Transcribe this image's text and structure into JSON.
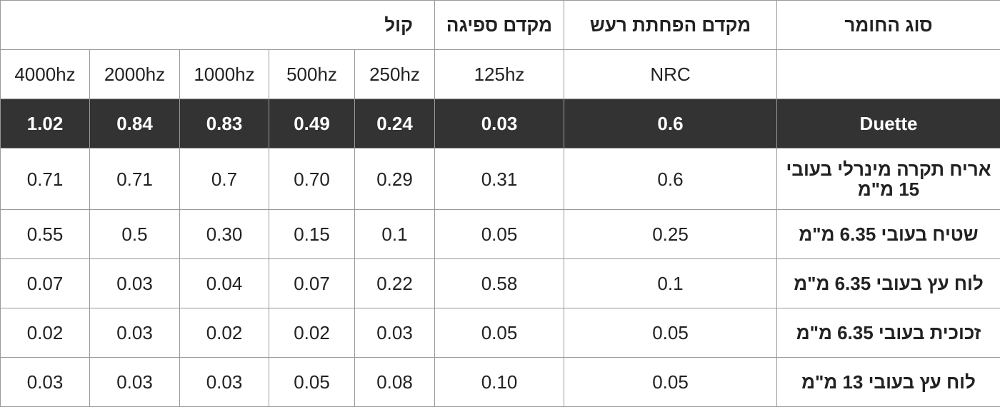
{
  "table": {
    "header": [
      "סוג החומר",
      "מקדם הפחתת רעש",
      "מקדם ספיגה",
      "קול"
    ],
    "subheader": [
      "",
      "NRC",
      "125hz",
      "250hz",
      "500hz",
      "1000hz",
      "2000hz",
      "4000hz"
    ],
    "rows": [
      [
        "Duette",
        "0.6",
        "0.03",
        "0.24",
        "0.49",
        "0.83",
        "0.84",
        "1.02"
      ],
      [
        "אריח תקרה מינרלי בעובי 15 מ\"מ",
        "0.6",
        "0.31",
        "0.29",
        "0.70",
        "0.7",
        "0.71",
        "0.71"
      ],
      [
        "שטיח בעובי 6.35 מ\"מ",
        "0.25",
        "0.05",
        "0.1",
        "0.15",
        "0.30",
        "0.5",
        "0.55"
      ],
      [
        "לוח עץ בעובי 6.35 מ\"מ",
        "0.1",
        "0.58",
        "0.22",
        "0.07",
        "0.04",
        "0.03",
        "0.07"
      ],
      [
        "זכוכית בעובי 6.35 מ\"מ",
        "0.05",
        "0.05",
        "0.03",
        "0.02",
        "0.02",
        "0.03",
        "0.02"
      ],
      [
        "לוח עץ בעובי 13 מ\"מ",
        "0.05",
        "0.10",
        "0.08",
        "0.05",
        "0.03",
        "0.03",
        "0.03"
      ]
    ]
  }
}
